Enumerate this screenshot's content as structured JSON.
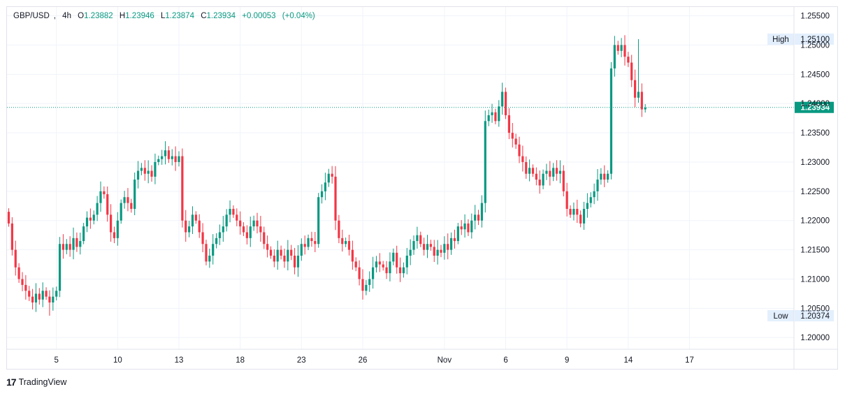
{
  "legend": {
    "symbol": "GBP/USD",
    "interval": "4h",
    "open_key": "O",
    "open": "1.23882",
    "high_key": "H",
    "high": "1.23946",
    "low_key": "L",
    "low": "1.23874",
    "close_key": "C",
    "close": "1.23934",
    "change": "+0.00053",
    "change_pct": "(+0.04%)"
  },
  "brand": {
    "logo": "17",
    "name": "TradingView"
  },
  "price_tags": {
    "high_label": "High",
    "high_value": "1.25100",
    "low_label": "Low",
    "low_value": "1.20374",
    "last_value": "1.23934"
  },
  "colors": {
    "up": "#089981",
    "down": "#f23645",
    "last_price": "#089981",
    "grid": "#f0f3fa",
    "tag_bg": "#e3effd"
  },
  "chart_data": {
    "type": "candlestick",
    "title": "",
    "xlabel": "",
    "ylabel": "",
    "ylim": [
      1.198,
      1.2565
    ],
    "y_ticks": [
      "1.20000",
      "1.20500",
      "1.21000",
      "1.21500",
      "1.22000",
      "1.22500",
      "1.23000",
      "1.23500",
      "1.24000",
      "1.24500",
      "1.25000",
      "1.25500"
    ],
    "x_ticks": [
      {
        "label": "5",
        "index": 14
      },
      {
        "label": "10",
        "index": 32
      },
      {
        "label": "13",
        "index": 50
      },
      {
        "label": "18",
        "index": 68
      },
      {
        "label": "23",
        "index": 86
      },
      {
        "label": "26",
        "index": 104
      },
      {
        "label": "Nov",
        "index": 128
      },
      {
        "label": "6",
        "index": 146
      },
      {
        "label": "9",
        "index": 164
      },
      {
        "label": "14",
        "index": 182
      },
      {
        "label": "17",
        "index": 200
      }
    ],
    "grid": true,
    "last_price": 1.23934,
    "high": 1.251,
    "low": 1.20374,
    "closes": [
      1.2195,
      1.215,
      1.212,
      1.21,
      1.209,
      1.208,
      1.207,
      1.206,
      1.2075,
      1.2065,
      1.208,
      1.207,
      1.206,
      1.207,
      1.208,
      1.216,
      1.215,
      1.216,
      1.215,
      1.217,
      1.2155,
      1.2165,
      1.219,
      1.2205,
      1.22,
      1.221,
      1.223,
      1.225,
      1.2245,
      1.221,
      1.218,
      1.217,
      1.22,
      1.223,
      1.224,
      1.223,
      1.222,
      1.227,
      1.2285,
      1.229,
      1.228,
      1.2285,
      1.2275,
      1.23,
      1.2305,
      1.231,
      1.232,
      1.2305,
      1.231,
      1.23,
      1.231,
      1.22,
      1.218,
      1.219,
      1.221,
      1.22,
      1.218,
      1.216,
      1.213,
      1.214,
      1.216,
      1.217,
      1.218,
      1.219,
      1.221,
      1.222,
      1.221,
      1.22,
      1.219,
      1.218,
      1.217,
      1.219,
      1.22,
      1.219,
      1.218,
      1.216,
      1.215,
      1.214,
      1.213,
      1.215,
      1.214,
      1.213,
      1.215,
      1.214,
      1.212,
      1.214,
      1.216,
      1.2155,
      1.217,
      1.2165,
      1.216,
      1.224,
      1.225,
      1.2265,
      1.228,
      1.2275,
      1.22,
      1.217,
      1.216,
      1.2165,
      1.215,
      1.213,
      1.212,
      1.21,
      1.208,
      1.209,
      1.21,
      1.212,
      1.213,
      1.2125,
      1.212,
      1.211,
      1.213,
      1.2145,
      1.212,
      1.211,
      1.212,
      1.214,
      1.215,
      1.2165,
      1.2175,
      1.216,
      1.215,
      1.216,
      1.2155,
      1.214,
      1.215,
      1.2145,
      1.216,
      1.215,
      1.217,
      1.2165,
      1.219,
      1.2185,
      1.2195,
      1.218,
      1.22,
      1.221,
      1.22,
      1.223,
      1.237,
      1.238,
      1.2385,
      1.237,
      1.2395,
      1.242,
      1.238,
      1.235,
      1.234,
      1.233,
      1.231,
      1.23,
      1.228,
      1.229,
      1.228,
      1.227,
      1.226,
      1.228,
      1.2285,
      1.2275,
      1.229,
      1.228,
      1.2285,
      1.225,
      1.222,
      1.221,
      1.222,
      1.221,
      1.2195,
      1.222,
      1.223,
      1.224,
      1.225,
      1.227,
      1.228,
      1.227,
      1.228,
      1.246,
      1.25,
      1.249,
      1.25,
      1.248,
      1.247,
      1.244,
      1.241,
      1.242,
      1.239,
      1.2393
    ]
  }
}
